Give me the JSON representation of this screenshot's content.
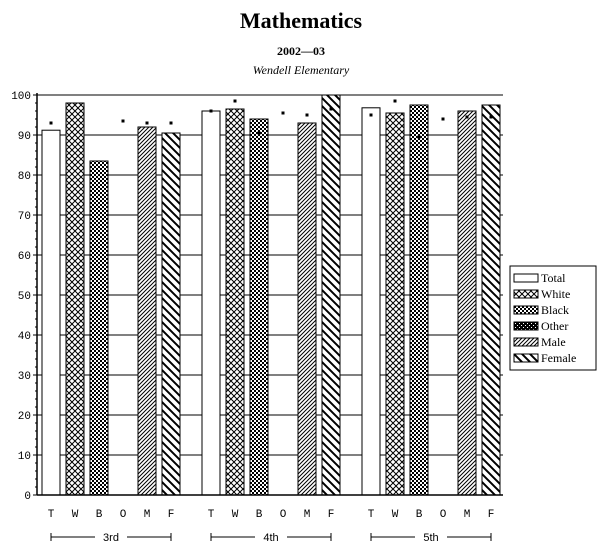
{
  "chart_data": {
    "type": "bar",
    "title": "Mathematics",
    "subtitle": "2002—03",
    "school": "Wendell Elementary",
    "ylim": [
      0,
      100
    ],
    "y_ticks": [
      "0",
      "10",
      "20",
      "30",
      "40",
      "50",
      "60",
      "70",
      "80",
      "90",
      "100"
    ],
    "grid": true,
    "legend_position": "right",
    "groups": [
      {
        "label": "3rd",
        "bars": [
          {
            "series": "Total",
            "cat": "T",
            "value": 91.2,
            "dot": 93.0
          },
          {
            "series": "White",
            "cat": "W",
            "value": 98.0,
            "dot": null
          },
          {
            "series": "Black",
            "cat": "B",
            "value": 83.5,
            "dot": null
          },
          {
            "series": "Other",
            "cat": "O",
            "value": null,
            "dot": 93.5
          },
          {
            "series": "Male",
            "cat": "M",
            "value": 92.0,
            "dot": 93.0
          },
          {
            "series": "Female",
            "cat": "F",
            "value": 90.5,
            "dot": 93.0
          }
        ]
      },
      {
        "label": "4th",
        "bars": [
          {
            "series": "Total",
            "cat": "T",
            "value": 96.0,
            "dot": 96.0
          },
          {
            "series": "White",
            "cat": "W",
            "value": 96.5,
            "dot": 98.5
          },
          {
            "series": "Black",
            "cat": "B",
            "value": 94.0,
            "dot": 90.5
          },
          {
            "series": "Other",
            "cat": "O",
            "value": null,
            "dot": 95.5
          },
          {
            "series": "Male",
            "cat": "M",
            "value": 93.0,
            "dot": 95.0
          },
          {
            "series": "Female",
            "cat": "F",
            "value": 100.0,
            "dot": 96.5
          }
        ]
      },
      {
        "label": "5th",
        "bars": [
          {
            "series": "Total",
            "cat": "T",
            "value": 96.8,
            "dot": 95.0
          },
          {
            "series": "White",
            "cat": "W",
            "value": 95.5,
            "dot": 98.5
          },
          {
            "series": "Black",
            "cat": "B",
            "value": 97.5,
            "dot": 89.5
          },
          {
            "series": "Other",
            "cat": "O",
            "value": null,
            "dot": 94.0
          },
          {
            "series": "Male",
            "cat": "M",
            "value": 96.0,
            "dot": 94.5
          },
          {
            "series": "Female",
            "cat": "F",
            "value": 97.5,
            "dot": 94.5
          }
        ]
      }
    ],
    "legend": [
      {
        "name": "Total",
        "pattern": "pat-total"
      },
      {
        "name": "White",
        "pattern": "pat-white"
      },
      {
        "name": "Black",
        "pattern": "pat-black"
      },
      {
        "name": "Other",
        "pattern": "pat-other"
      },
      {
        "name": "Male",
        "pattern": "pat-male"
      },
      {
        "name": "Female",
        "pattern": "pat-female"
      }
    ],
    "colors": {
      "ink": "#000000",
      "paper": "#ffffff"
    }
  }
}
